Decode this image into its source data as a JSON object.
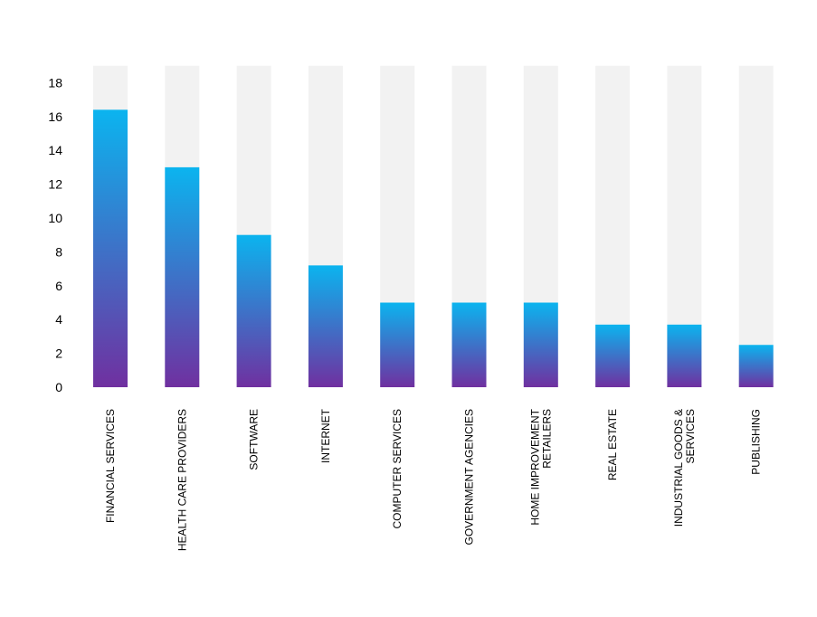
{
  "chart_data": {
    "type": "bar",
    "categories": [
      [
        "FINANCIAL SERVICES"
      ],
      [
        "HEALTH CARE PROVIDERS"
      ],
      [
        "SOFTWARE"
      ],
      [
        "INTERNET"
      ],
      [
        "COMPUTER SERVICES"
      ],
      [
        "GOVERNMENT AGENCIES"
      ],
      [
        "HOME IMPROVEMENT",
        "RETAILERS"
      ],
      [
        "REAL ESTATE"
      ],
      [
        "INDUSTRIAL GOODS &",
        "SERVICES"
      ],
      [
        "PUBLISHING"
      ]
    ],
    "values": [
      16.4,
      13.0,
      9.0,
      7.2,
      5.0,
      5.0,
      5.0,
      3.7,
      3.7,
      2.5
    ],
    "ylim": [
      0,
      18
    ],
    "yticks": [
      0,
      2,
      4,
      6,
      8,
      10,
      12,
      14,
      16,
      18
    ],
    "background_bar_max": 19,
    "grid": false,
    "colors": {
      "bar_top": "#0bb4ef",
      "bar_bottom": "#7030a0",
      "track": "#f2f2f2"
    }
  }
}
